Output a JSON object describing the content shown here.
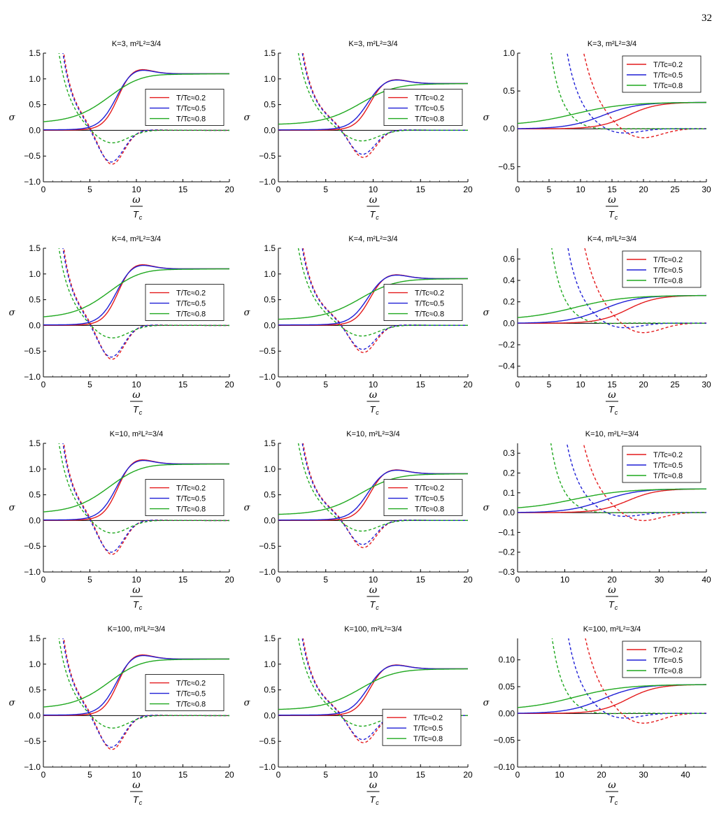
{
  "page_number": "32",
  "legend_labels": [
    "T/T c≈0.2",
    "T/Tc≈0.5",
    "T/Tc≈0.8"
  ],
  "chart_data": [
    {
      "type": "line",
      "title": "K=3, m²L²=3/4",
      "xlabel": "ω / Tc",
      "ylabel": "σ",
      "xlim": [
        0,
        20
      ],
      "ylim": [
        -1,
        1.5
      ],
      "xticks": [
        0,
        5,
        10,
        15,
        20
      ],
      "yticks": [
        -1.0,
        -0.5,
        0.0,
        0.5,
        1.0,
        1.5
      ],
      "legend": "right",
      "column": "left",
      "series": [
        {
          "name": "T/Tc≈0.2",
          "color": "#e41a1c"
        },
        {
          "name": "T/Tc≈0.5",
          "color": "#1f1fd6"
        },
        {
          "name": "T/Tc≈0.8",
          "color": "#1fa81f"
        }
      ]
    },
    {
      "type": "line",
      "title": "K=3, m²L²=3/4",
      "xlabel": "ω / Tc",
      "ylabel": "σ",
      "xlim": [
        0,
        20
      ],
      "ylim": [
        -1,
        1.5
      ],
      "xticks": [
        0,
        5,
        10,
        15,
        20
      ],
      "yticks": [
        -1.0,
        -0.5,
        0.0,
        0.5,
        1.0,
        1.5
      ],
      "legend": "right",
      "column": "middle",
      "series": [
        {
          "name": "T/Tc≈0.2",
          "color": "#e41a1c"
        },
        {
          "name": "T/Tc≈0.5",
          "color": "#1f1fd6"
        },
        {
          "name": "T/Tc≈0.8",
          "color": "#1fa81f"
        }
      ]
    },
    {
      "type": "line",
      "title": "K=3, m²L²=3/4",
      "xlabel": "ω / Tc",
      "ylabel": "σ",
      "xlim": [
        0,
        30
      ],
      "ylim": [
        -0.7,
        1.0
      ],
      "xticks": [
        0,
        5,
        10,
        15,
        20,
        25,
        30
      ],
      "yticks": [
        -0.5,
        0.0,
        0.5,
        1.0
      ],
      "legend": "top-right",
      "column": "right",
      "sat": 0.35,
      "series": [
        {
          "name": "T/Tc≈0.2",
          "color": "#e41a1c"
        },
        {
          "name": "T/Tc≈0.5",
          "color": "#1f1fd6"
        },
        {
          "name": "T/Tc≈0.8",
          "color": "#1fa81f"
        }
      ]
    },
    {
      "type": "line",
      "title": "K=4, m²L²=3/4",
      "xlabel": "ω / Tc",
      "ylabel": "σ",
      "xlim": [
        0,
        20
      ],
      "ylim": [
        -1,
        1.5
      ],
      "xticks": [
        0,
        5,
        10,
        15,
        20
      ],
      "yticks": [
        -1.0,
        -0.5,
        0.0,
        0.5,
        1.0,
        1.5
      ],
      "legend": "right",
      "column": "left",
      "series": [
        {
          "name": "T/Tc≈0.2",
          "color": "#e41a1c"
        },
        {
          "name": "T/Tc≈0.5",
          "color": "#1f1fd6"
        },
        {
          "name": "T/Tc≈0.8",
          "color": "#1fa81f"
        }
      ]
    },
    {
      "type": "line",
      "title": "K=4, m²L²=3/4",
      "xlabel": "ω / Tc",
      "ylabel": "σ",
      "xlim": [
        0,
        20
      ],
      "ylim": [
        -1,
        1.5
      ],
      "xticks": [
        0,
        5,
        10,
        15,
        20
      ],
      "yticks": [
        -1.0,
        -0.5,
        0.0,
        0.5,
        1.0,
        1.5
      ],
      "legend": "right",
      "column": "middle",
      "series": [
        {
          "name": "T/Tc≈0.2",
          "color": "#e41a1c"
        },
        {
          "name": "T/Tc≈0.5",
          "color": "#1f1fd6"
        },
        {
          "name": "T/Tc≈0.8",
          "color": "#1fa81f"
        }
      ]
    },
    {
      "type": "line",
      "title": "K=4, m²L²=3/4",
      "xlabel": "ω / Tc",
      "ylabel": "σ",
      "xlim": [
        0,
        30
      ],
      "ylim": [
        -0.5,
        0.7
      ],
      "xticks": [
        0,
        5,
        10,
        15,
        20,
        25,
        30
      ],
      "yticks": [
        -0.4,
        -0.2,
        0.0,
        0.2,
        0.4,
        0.6
      ],
      "legend": "top-right",
      "column": "right",
      "sat": 0.26,
      "series": [
        {
          "name": "T/Tc≈0.2",
          "color": "#e41a1c"
        },
        {
          "name": "T/Tc≈0.5",
          "color": "#1f1fd6"
        },
        {
          "name": "T/Tc≈0.8",
          "color": "#1fa81f"
        }
      ]
    },
    {
      "type": "line",
      "title": "K=10, m²L²=3/4",
      "xlabel": "ω / Tc",
      "ylabel": "σ",
      "xlim": [
        0,
        20
      ],
      "ylim": [
        -1,
        1.5
      ],
      "xticks": [
        0,
        5,
        10,
        15,
        20
      ],
      "yticks": [
        -1.0,
        -0.5,
        0.0,
        0.5,
        1.0,
        1.5
      ],
      "legend": "right",
      "column": "left",
      "series": [
        {
          "name": "T/Tc≈0.2",
          "color": "#e41a1c"
        },
        {
          "name": "T/Tc≈0.5",
          "color": "#1f1fd6"
        },
        {
          "name": "T/Tc≈0.8",
          "color": "#1fa81f"
        }
      ]
    },
    {
      "type": "line",
      "title": "K=10, m²L²=3/4",
      "xlabel": "ω / Tc",
      "ylabel": "σ",
      "xlim": [
        0,
        20
      ],
      "ylim": [
        -1,
        1.5
      ],
      "xticks": [
        0,
        5,
        10,
        15,
        20
      ],
      "yticks": [
        -1.0,
        -0.5,
        0.0,
        0.5,
        1.0,
        1.5
      ],
      "legend": "right",
      "column": "middle",
      "series": [
        {
          "name": "T/Tc≈0.2",
          "color": "#e41a1c"
        },
        {
          "name": "T/Tc≈0.5",
          "color": "#1f1fd6"
        },
        {
          "name": "T/Tc≈0.8",
          "color": "#1fa81f"
        }
      ]
    },
    {
      "type": "line",
      "title": "K=10, m²L²=3/4",
      "xlabel": "ω / Tc",
      "ylabel": "σ",
      "xlim": [
        0,
        40
      ],
      "ylim": [
        -0.3,
        0.35
      ],
      "xticks": [
        0,
        10,
        20,
        30,
        40
      ],
      "yticks": [
        -0.3,
        -0.2,
        -0.1,
        0.0,
        0.1,
        0.2,
        0.3
      ],
      "legend": "top-right",
      "column": "right",
      "sat": 0.12,
      "series": [
        {
          "name": "T/Tc≈0.2",
          "color": "#e41a1c"
        },
        {
          "name": "T/Tc≈0.5",
          "color": "#1f1fd6"
        },
        {
          "name": "T/Tc≈0.8",
          "color": "#1fa81f"
        }
      ]
    },
    {
      "type": "line",
      "title": "K=100, m²L²=3/4",
      "xlabel": "ω / Tc",
      "ylabel": "σ",
      "xlim": [
        0,
        20
      ],
      "ylim": [
        -1,
        1.5
      ],
      "xticks": [
        0,
        5,
        10,
        15,
        20
      ],
      "yticks": [
        -1.0,
        -0.5,
        0.0,
        0.5,
        1.0,
        1.5
      ],
      "legend": "right",
      "column": "left",
      "series": [
        {
          "name": "T/Tc≈0.2",
          "color": "#e41a1c"
        },
        {
          "name": "T/Tc≈0.5",
          "color": "#1f1fd6"
        },
        {
          "name": "T/Tc≈0.8",
          "color": "#1fa81f"
        }
      ]
    },
    {
      "type": "line",
      "title": "K=100, m²L²=3/4",
      "xlabel": "ω / Tc",
      "ylabel": "σ",
      "xlim": [
        0,
        20
      ],
      "ylim": [
        -1,
        1.5
      ],
      "xticks": [
        0,
        5,
        10,
        15,
        20
      ],
      "yticks": [
        -1.0,
        -0.5,
        0.0,
        0.5,
        1.0,
        1.5
      ],
      "legend": "bottom-right",
      "column": "middle",
      "series": [
        {
          "name": "T/Tc≈0.2",
          "color": "#e41a1c"
        },
        {
          "name": "T/Tc≈0.5",
          "color": "#1f1fd6"
        },
        {
          "name": "T/Tc≈0.8",
          "color": "#1fa81f"
        }
      ]
    },
    {
      "type": "line",
      "title": "K=100, m²L²=3/4",
      "xlabel": "ω / Tc",
      "ylabel": "σ",
      "xlim": [
        0,
        45
      ],
      "ylim": [
        -0.1,
        0.14
      ],
      "xticks": [
        0,
        10,
        20,
        30,
        40
      ],
      "yticks": [
        -0.1,
        -0.05,
        0.0,
        0.05,
        0.1
      ],
      "legend": "top-right",
      "column": "right",
      "sat": 0.054,
      "series": [
        {
          "name": "T/Tc≈0.2",
          "color": "#e41a1c"
        },
        {
          "name": "T/Tc≈0.5",
          "color": "#1f1fd6"
        },
        {
          "name": "T/Tc≈0.8",
          "color": "#1fa81f"
        }
      ]
    }
  ]
}
